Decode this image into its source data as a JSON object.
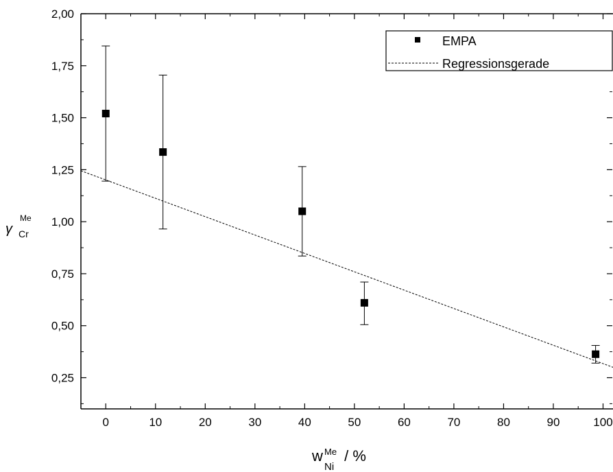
{
  "chart_data": {
    "type": "scatter",
    "xlabel": {
      "main": "w",
      "sup": "Me",
      "sub": "Ni",
      "suffix": " / %"
    },
    "ylabel": {
      "main": "γ",
      "sup": "Me",
      "sub": "Cr"
    },
    "xlim": [
      -5,
      102
    ],
    "ylim": [
      0.1,
      2.0
    ],
    "x_ticks": [
      0,
      10,
      20,
      30,
      40,
      50,
      60,
      70,
      80,
      90,
      100
    ],
    "y_ticks": [
      0.25,
      0.5,
      0.75,
      1.0,
      1.25,
      1.5,
      1.75,
      2.0
    ],
    "y_tick_labels": [
      "0,25",
      "0,50",
      "0,75",
      "1,00",
      "1,25",
      "1,50",
      "1,75",
      "2,00"
    ],
    "grid": false,
    "legend_position": "top-right",
    "series": [
      {
        "name": "EMPA",
        "marker": "square",
        "color": "#000000",
        "points": [
          {
            "x": 0,
            "y": 1.52,
            "ymin": 1.195,
            "ymax": 1.845
          },
          {
            "x": 11.5,
            "y": 1.335,
            "ymin": 0.965,
            "ymax": 1.705
          },
          {
            "x": 39.5,
            "y": 1.05,
            "ymin": 0.835,
            "ymax": 1.265
          },
          {
            "x": 52,
            "y": 0.61,
            "ymin": 0.505,
            "ymax": 0.71
          },
          {
            "x": 98.5,
            "y": 0.363,
            "ymin": 0.32,
            "ymax": 0.405
          }
        ]
      },
      {
        "name": "Regressionsgerade",
        "style": "dashed",
        "color": "#000000",
        "line": [
          {
            "x": -5,
            "y": 1.245
          },
          {
            "x": 102,
            "y": 0.3
          }
        ]
      }
    ]
  }
}
